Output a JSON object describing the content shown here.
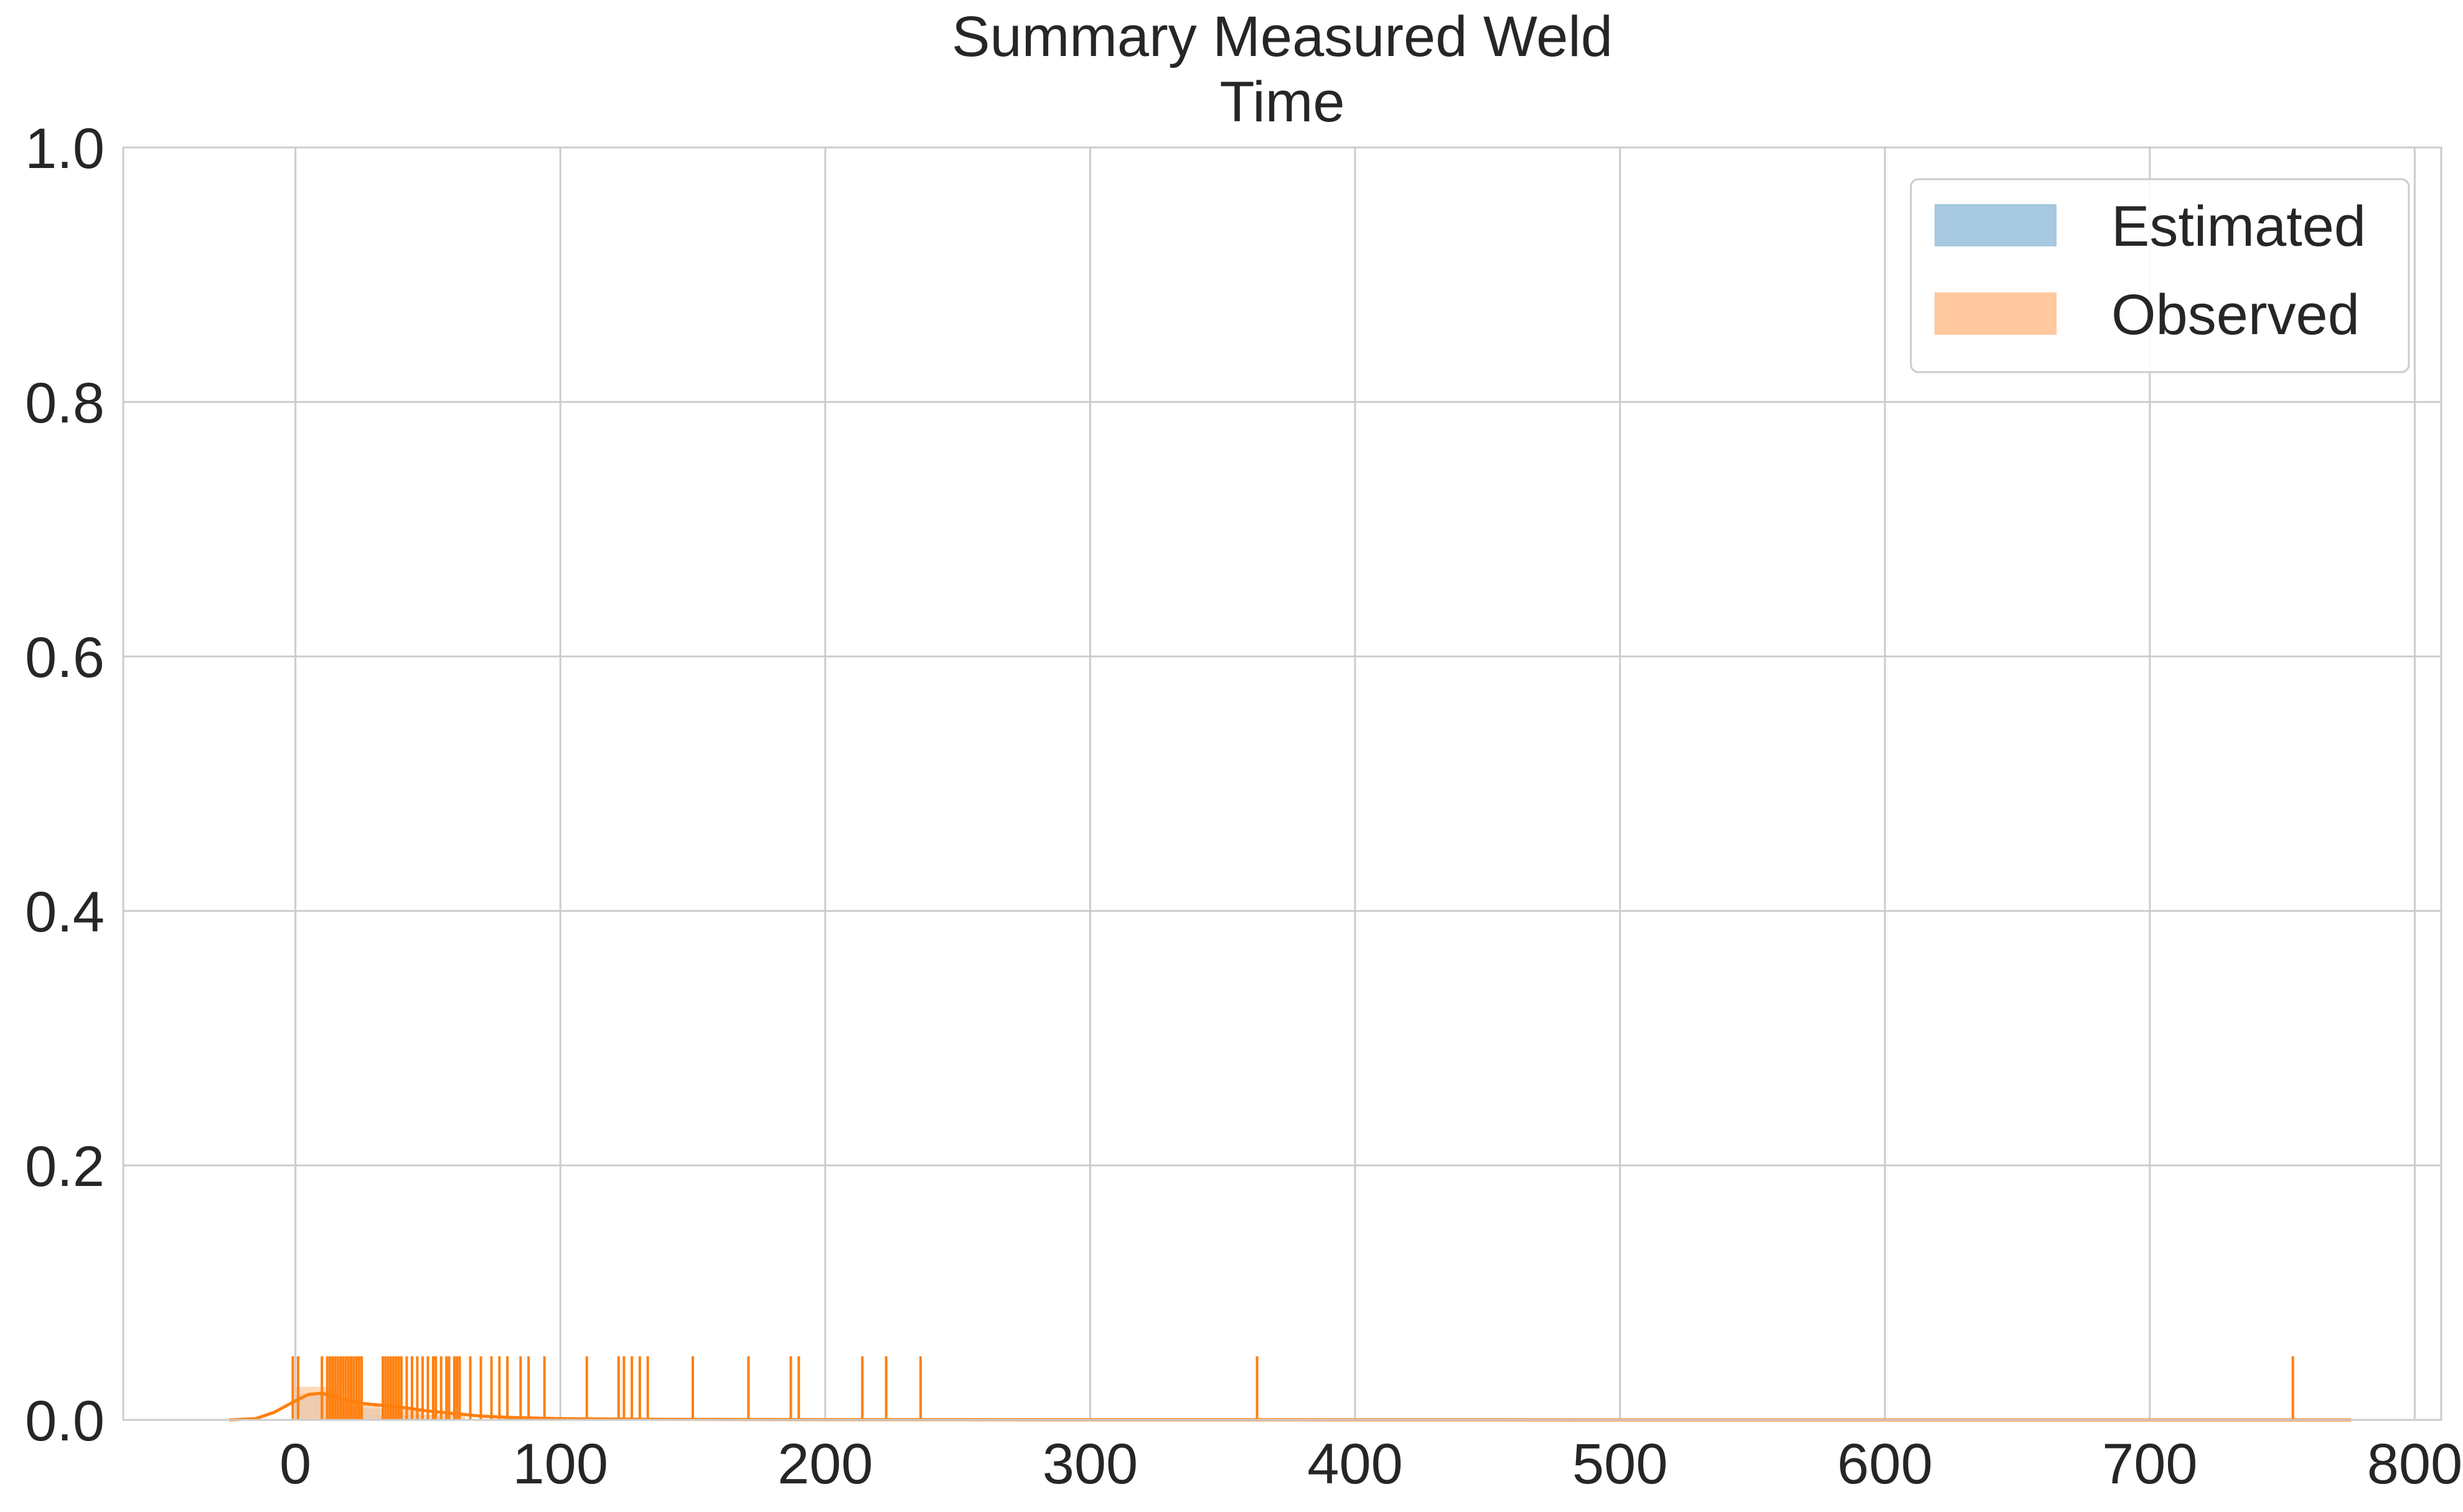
{
  "chart_data": {
    "type": "histogram",
    "title_lines": [
      "Summary Measured Weld",
      "Time"
    ],
    "xlabel": "",
    "ylabel": "",
    "xlim": [
      -65,
      810
    ],
    "ylim": [
      0,
      1.0
    ],
    "x_ticks": [
      0,
      100,
      200,
      300,
      400,
      500,
      600,
      700,
      800
    ],
    "x_tick_labels": [
      "0",
      "100",
      "200",
      "300",
      "400",
      "500",
      "600",
      "700",
      "800"
    ],
    "y_ticks": [
      0.0,
      0.2,
      0.4,
      0.6,
      0.8,
      1.0
    ],
    "y_tick_labels": [
      "0.0",
      "0.2",
      "0.4",
      "0.6",
      "0.8",
      "1.0"
    ],
    "grid": true,
    "legend_position": "top-right",
    "series": [
      {
        "name": "Estimated",
        "color": "#a6c8e0",
        "hist_bins": [
          {
            "x0": 0,
            "x1": 16,
            "density": 0.021
          },
          {
            "x0": 16,
            "x1": 32,
            "density": 0.009
          },
          {
            "x0": 32,
            "x1": 48,
            "density": 0.004
          }
        ]
      },
      {
        "name": "Observed",
        "color": "#ffc89e",
        "line_color": "#ff7f0e",
        "hist_bins": [
          {
            "x0": 0,
            "x1": 16,
            "density": 0.026
          },
          {
            "x0": 16,
            "x1": 32,
            "density": 0.013
          },
          {
            "x0": 32,
            "x1": 48,
            "density": 0.009
          },
          {
            "x0": 48,
            "x1": 64,
            "density": 0.004
          }
        ],
        "kde": [
          [
            -25,
            0.0
          ],
          [
            -15,
            0.001
          ],
          [
            -8,
            0.006
          ],
          [
            0,
            0.015
          ],
          [
            5,
            0.02
          ],
          [
            10,
            0.021
          ],
          [
            15,
            0.018
          ],
          [
            20,
            0.015
          ],
          [
            25,
            0.013
          ],
          [
            30,
            0.012
          ],
          [
            35,
            0.011
          ],
          [
            40,
            0.01
          ],
          [
            50,
            0.007
          ],
          [
            60,
            0.005
          ],
          [
            70,
            0.003
          ],
          [
            80,
            0.002
          ],
          [
            100,
            0.001
          ],
          [
            130,
            0.0005
          ],
          [
            200,
            0.0002
          ],
          [
            360,
            0.0001
          ],
          [
            500,
            0.0
          ],
          [
            776,
            0.0
          ]
        ],
        "rug_height": 0.05,
        "rug": [
          -1,
          1,
          10,
          12,
          13,
          14,
          15,
          16,
          17,
          18,
          19,
          20,
          21,
          22,
          23,
          24,
          25,
          33,
          34,
          35,
          36,
          37,
          38,
          39,
          40,
          42,
          44,
          46,
          48,
          50,
          52,
          53,
          55,
          57,
          58,
          60,
          61,
          62,
          66,
          70,
          74,
          77,
          80,
          85,
          88,
          94,
          110,
          122,
          124,
          127,
          130,
          133,
          150,
          171,
          187,
          190,
          214,
          223,
          236,
          363,
          754
        ]
      }
    ]
  }
}
